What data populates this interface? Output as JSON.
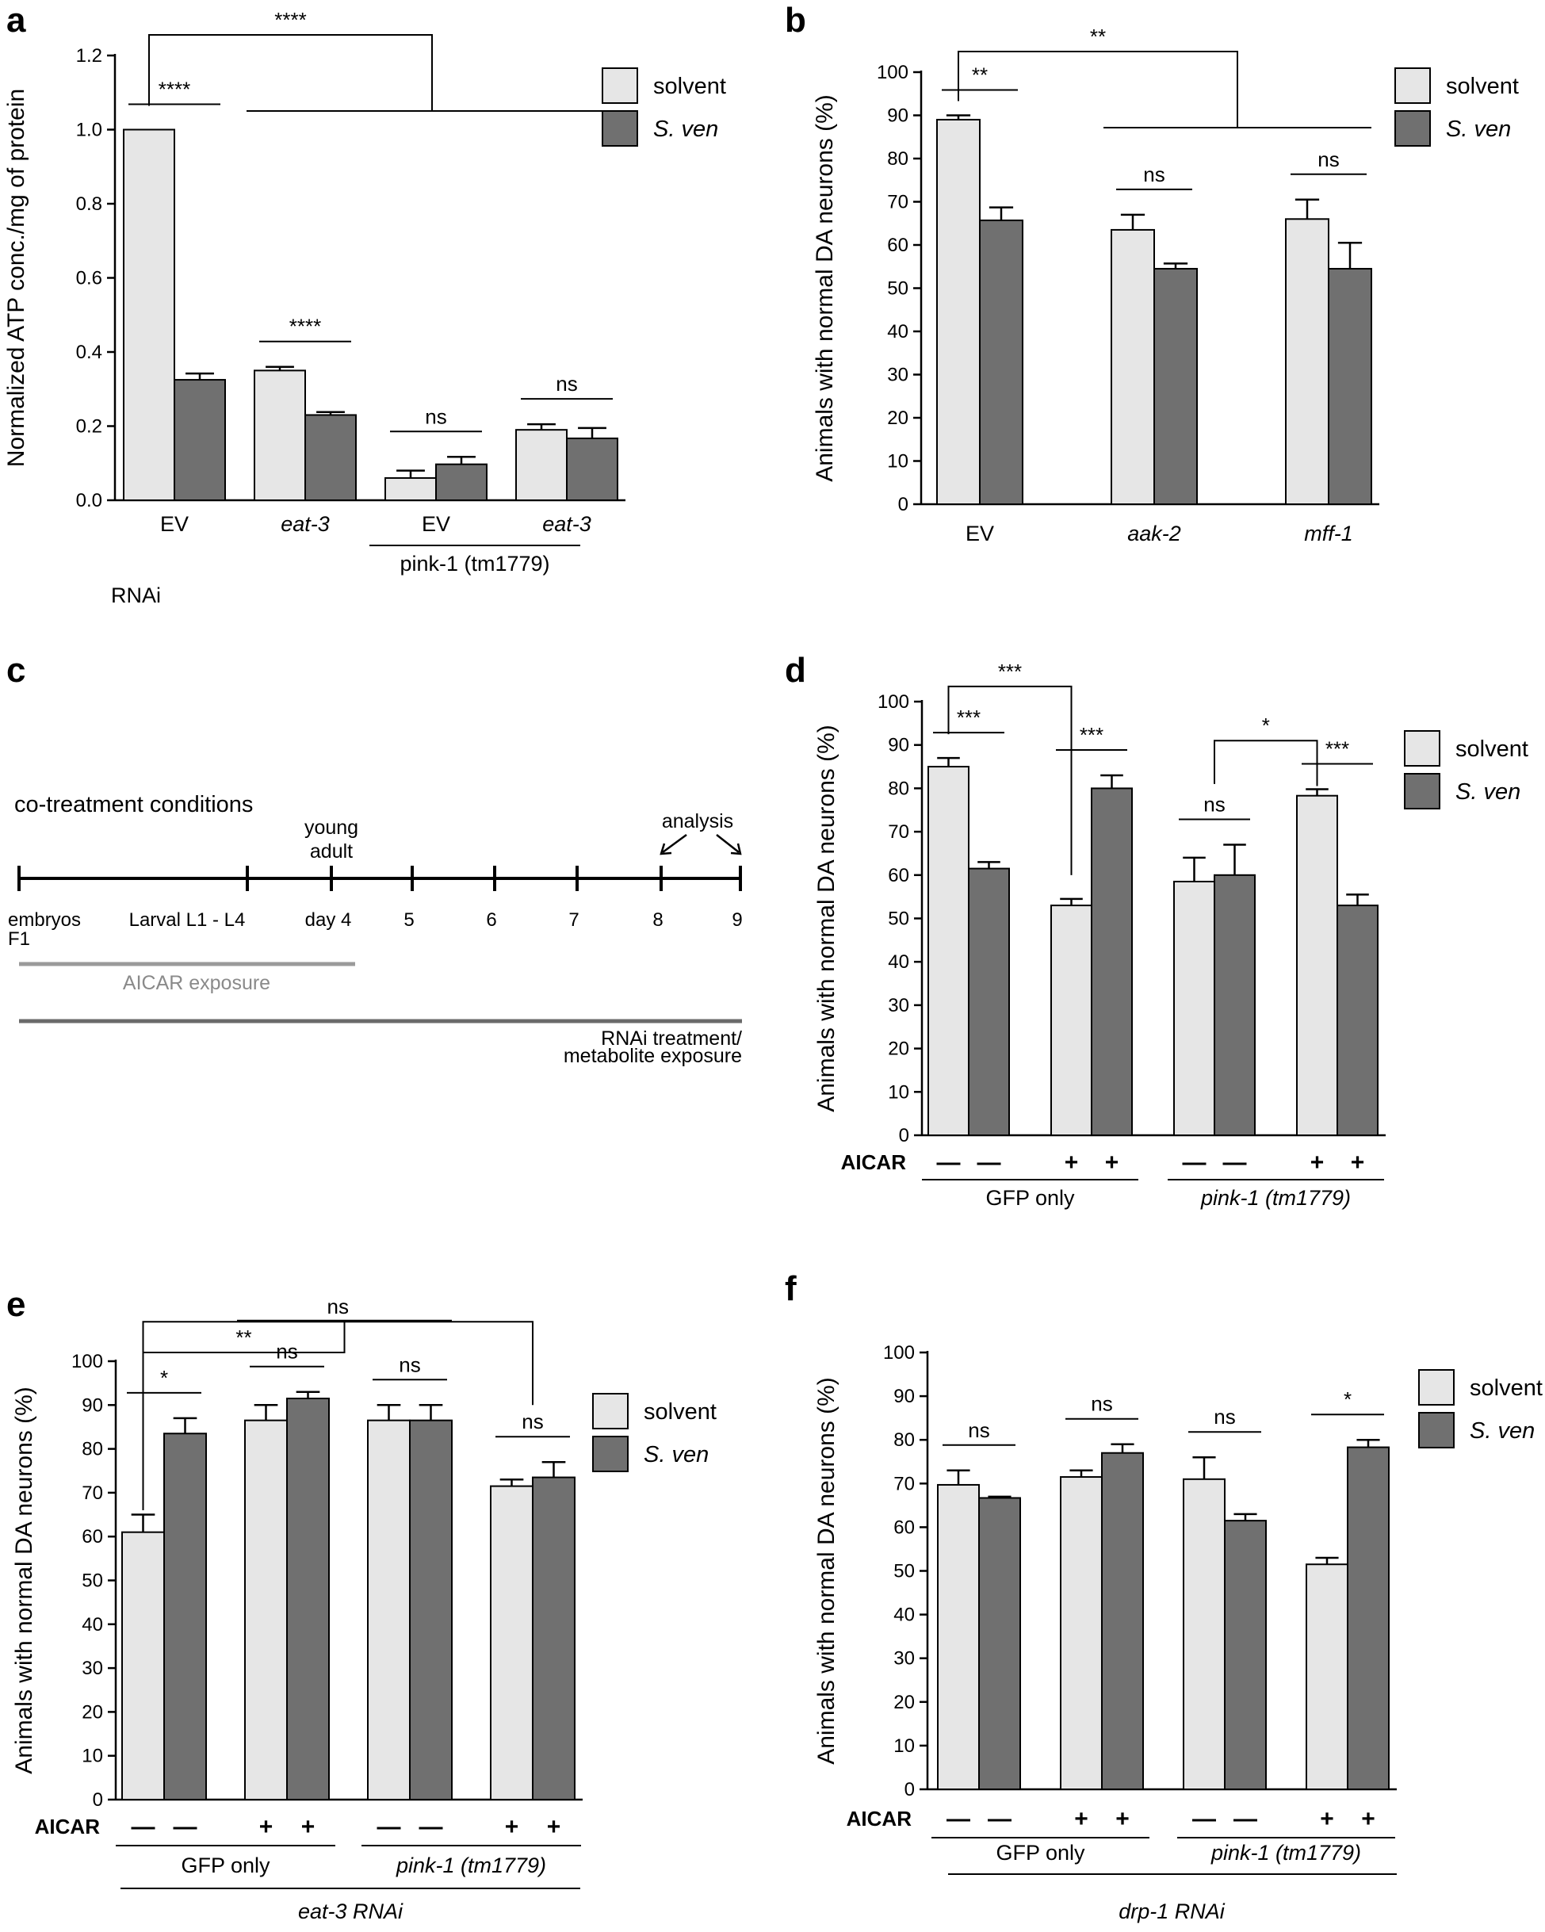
{
  "colors": {
    "solvent": "#e6e6e6",
    "sven": "#707070",
    "axis": "#000000",
    "aicar_bar": "#9a9a9a",
    "rnai_bar": "#6a6a6a"
  },
  "legend": {
    "solvent": "solvent",
    "sven": "S. ven"
  },
  "chart_data": [
    {
      "panel": "a",
      "type": "bar",
      "ylabel": "Normalized ATP conc./mg of protein",
      "ylim": [
        0,
        1.2
      ],
      "yticks": [
        "0.0",
        "0.2",
        "0.4",
        "0.6",
        "0.8",
        "1.0",
        "1.2"
      ],
      "categories": [
        "EV",
        "eat-3",
        "EV",
        "eat-3"
      ],
      "series": [
        {
          "name": "solvent",
          "values": [
            1.0,
            0.35,
            0.06,
            0.19
          ],
          "errors": [
            0,
            0.01,
            0.02,
            0.015
          ]
        },
        {
          "name": "S. ven",
          "values": [
            0.325,
            0.23,
            0.097,
            0.167
          ],
          "errors": [
            0.017,
            0.008,
            0.02,
            0.028
          ]
        }
      ],
      "group_labels": [
        {
          "label": "pink-1 (tm1779)"
        }
      ],
      "bottom_label": "RNAi",
      "annotations": [
        {
          "text": "****",
          "from": [
            0,
            "solvent"
          ],
          "to": [
            0,
            "S. ven"
          ]
        },
        {
          "text": "****",
          "from": [
            1,
            "solvent"
          ],
          "to": [
            1,
            "S. ven"
          ]
        },
        {
          "text": "ns",
          "from": [
            2,
            "solvent"
          ],
          "to": [
            2,
            "S. ven"
          ]
        },
        {
          "text": "ns",
          "from": [
            3,
            "solvent"
          ],
          "to": [
            3,
            "S. ven"
          ]
        },
        {
          "text": "****",
          "type": "bracket-to-group",
          "from": [
            0,
            "solvent"
          ],
          "to_group": [
            1,
            3
          ]
        }
      ]
    },
    {
      "panel": "b",
      "type": "bar",
      "ylabel": "Animals with normal DA neurons (%)",
      "ylim": [
        0,
        100
      ],
      "yticks": [
        "0",
        "10",
        "20",
        "30",
        "40",
        "50",
        "60",
        "70",
        "80",
        "90",
        "100"
      ],
      "categories": [
        "EV",
        "aak-2",
        "mff-1"
      ],
      "series": [
        {
          "name": "solvent",
          "values": [
            89,
            63.5,
            66
          ],
          "errors": [
            1,
            3.5,
            4.5
          ]
        },
        {
          "name": "S. ven",
          "values": [
            65.7,
            54.5,
            54.5
          ],
          "errors": [
            3,
            1.2,
            6
          ]
        }
      ],
      "annotations": [
        {
          "text": "**",
          "from": [
            0,
            "solvent"
          ],
          "to": [
            0,
            "S. ven"
          ]
        },
        {
          "text": "ns",
          "from": [
            1,
            "solvent"
          ],
          "to": [
            1,
            "S. ven"
          ]
        },
        {
          "text": "ns",
          "from": [
            2,
            "solvent"
          ],
          "to": [
            2,
            "S. ven"
          ]
        },
        {
          "text": "**",
          "type": "bracket-to-group",
          "from": [
            0,
            "solvent"
          ],
          "to_group": [
            1,
            2
          ]
        }
      ]
    },
    {
      "panel": "d",
      "type": "bar",
      "ylabel": "Animals with normal DA neurons (%)",
      "ylim": [
        0,
        100
      ],
      "yticks": [
        "0",
        "10",
        "20",
        "30",
        "40",
        "50",
        "60",
        "70",
        "80",
        "90",
        "100"
      ],
      "categories": [
        "GFP only -",
        "GFP only +",
        "pink-1 -",
        "pink-1 +"
      ],
      "series": [
        {
          "name": "solvent",
          "values": [
            85,
            53,
            58.5,
            78.3
          ],
          "errors": [
            2,
            1.5,
            5.5,
            1.5
          ]
        },
        {
          "name": "S. ven",
          "values": [
            61.5,
            80,
            60,
            53
          ],
          "errors": [
            1.5,
            3,
            7,
            2.5
          ]
        }
      ],
      "aicar_label": "AICAR",
      "aicar": [
        "—",
        "—",
        "+",
        "+",
        "—",
        "—",
        "+",
        "+"
      ],
      "group_labels": [
        {
          "label": "GFP only"
        },
        {
          "label": "pink-1 (tm1779)"
        }
      ],
      "annotations": [
        {
          "text": "***",
          "from": [
            0,
            "solvent"
          ],
          "to": [
            0,
            "S. ven"
          ]
        },
        {
          "text": "***",
          "from": [
            1,
            "solvent"
          ],
          "to": [
            1,
            "S. ven"
          ]
        },
        {
          "text": "ns",
          "from": [
            2,
            "solvent"
          ],
          "to": [
            2,
            "S. ven"
          ]
        },
        {
          "text": "***",
          "from": [
            3,
            "solvent"
          ],
          "to": [
            3,
            "S. ven"
          ]
        },
        {
          "text": "***",
          "type": "bracket",
          "from": [
            0,
            "solvent"
          ],
          "to": [
            1,
            "solvent"
          ]
        },
        {
          "text": "*",
          "type": "bracket",
          "from": [
            2,
            "mid"
          ],
          "to": [
            3,
            "solvent"
          ]
        }
      ]
    },
    {
      "panel": "e",
      "type": "bar",
      "ylabel": "Animals with normal DA neurons (%)",
      "ylim": [
        0,
        100
      ],
      "yticks": [
        "0",
        "10",
        "20",
        "30",
        "40",
        "50",
        "60",
        "70",
        "80",
        "90",
        "100"
      ],
      "categories": [
        "GFP only -",
        "GFP only +",
        "pink-1 -",
        "pink-1 +"
      ],
      "series": [
        {
          "name": "solvent",
          "values": [
            61,
            86.5,
            86.5,
            71.5
          ],
          "errors": [
            4,
            3.5,
            3.5,
            1.5
          ]
        },
        {
          "name": "S. ven",
          "values": [
            83.5,
            91.5,
            86.5,
            73.5
          ],
          "errors": [
            3.5,
            1.5,
            3.5,
            3.5
          ]
        }
      ],
      "aicar_label": "AICAR",
      "aicar": [
        "—",
        "—",
        "+",
        "+",
        "—",
        "—",
        "+",
        "+"
      ],
      "group_labels": [
        {
          "label": "GFP only"
        },
        {
          "label": "pink-1 (tm1779)"
        }
      ],
      "bottom_label": "eat-3 RNAi",
      "annotations": [
        {
          "text": "*",
          "from": [
            0,
            "solvent"
          ],
          "to": [
            0,
            "S. ven"
          ]
        },
        {
          "text": "ns",
          "from": [
            1,
            "solvent"
          ],
          "to": [
            1,
            "S. ven"
          ]
        },
        {
          "text": "ns",
          "from": [
            2,
            "solvent"
          ],
          "to": [
            2,
            "S. ven"
          ]
        },
        {
          "text": "ns",
          "from": [
            3,
            "solvent"
          ],
          "to": [
            3,
            "S. ven"
          ]
        },
        {
          "text": "**",
          "type": "bracket-to-group",
          "from": [
            0,
            "solvent"
          ],
          "to_group": [
            1,
            2
          ]
        },
        {
          "text": "ns",
          "type": "bracket",
          "from": [
            0,
            "solvent"
          ],
          "to": [
            3,
            "mid"
          ]
        }
      ]
    },
    {
      "panel": "f",
      "type": "bar",
      "ylabel": "Animals with normal DA neurons (%)",
      "ylim": [
        0,
        100
      ],
      "yticks": [
        "0",
        "10",
        "20",
        "30",
        "40",
        "50",
        "60",
        "70",
        "80",
        "90",
        "100"
      ],
      "categories": [
        "GFP only -",
        "GFP only +",
        "pink-1 -",
        "pink-1 +"
      ],
      "series": [
        {
          "name": "solvent",
          "values": [
            69.7,
            71.5,
            71,
            51.5
          ],
          "errors": [
            3.3,
            1.5,
            5,
            1.5
          ]
        },
        {
          "name": "S. ven",
          "values": [
            66.7,
            77,
            61.5,
            78.3
          ],
          "errors": [
            0.3,
            2,
            1.5,
            1.7
          ]
        }
      ],
      "aicar_label": "AICAR",
      "aicar": [
        "—",
        "—",
        "+",
        "+",
        "—",
        "—",
        "+",
        "+"
      ],
      "group_labels": [
        {
          "label": "GFP only"
        },
        {
          "label": "pink-1 (tm1779)"
        }
      ],
      "bottom_label": "drp-1 RNAi",
      "annotations": [
        {
          "text": "ns",
          "from": [
            0,
            "solvent"
          ],
          "to": [
            0,
            "S. ven"
          ]
        },
        {
          "text": "ns",
          "from": [
            1,
            "solvent"
          ],
          "to": [
            1,
            "S. ven"
          ]
        },
        {
          "text": "ns",
          "from": [
            2,
            "solvent"
          ],
          "to": [
            2,
            "S. ven"
          ]
        },
        {
          "text": "*",
          "from": [
            3,
            "solvent"
          ],
          "to": [
            3,
            "S. ven"
          ]
        }
      ]
    }
  ],
  "panels": {
    "a": "a",
    "b": "b",
    "c": "c",
    "d": "d",
    "e": "e",
    "f": "f"
  },
  "timeline": {
    "title": "co-treatment conditions",
    "young_adult_1": "young",
    "young_adult_2": "adult",
    "analysis": "analysis",
    "ticks": [
      "embryos",
      "Larval L1 - L4",
      "day 4",
      "5",
      "6",
      "7",
      "8",
      "9"
    ],
    "f1": "F1",
    "aicar_exposure": "AICAR exposure",
    "rnai_1": "RNAi treatment/",
    "rnai_2": "metabolite exposure"
  }
}
